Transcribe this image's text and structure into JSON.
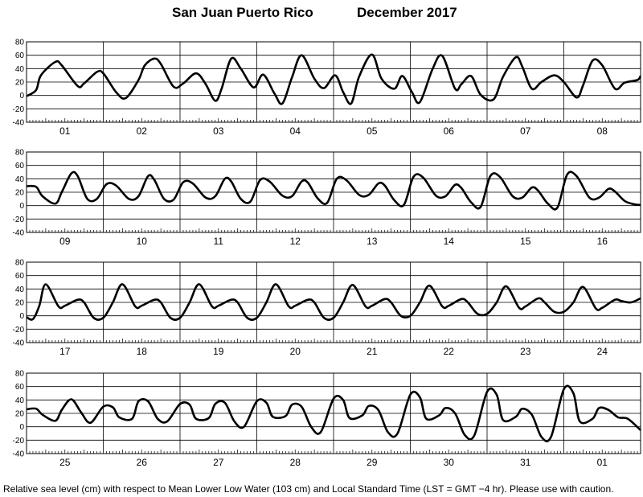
{
  "header": {
    "station": "San Juan Puerto Rico",
    "month_year": "December   2017"
  },
  "footnote": "Relative sea level (cm) with respect to Mean Lower Low Water (103 cm) and Local Standard Time (LST = GMT −4 hr). Please use with caution.",
  "chart_data": {
    "type": "line",
    "title": "San Juan Puerto Rico December 2017",
    "ylim": [
      -40,
      80
    ],
    "y_ticks": [
      -40,
      -20,
      0,
      20,
      40,
      60,
      80
    ],
    "grid": true,
    "panels": [
      {
        "day_labels": [
          "01",
          "02",
          "03",
          "04",
          "05",
          "06",
          "07",
          "08"
        ],
        "series": [
          {
            "x_hours": [
              0,
              3,
              4.5,
              9,
              11,
              16,
              18,
              22,
              24,
              28,
              31,
              35,
              37,
              40,
              42,
              46,
              49,
              53,
              56,
              59,
              61,
              64,
              67,
              71,
              74,
              77.5,
              80,
              83,
              86,
              90,
              93,
              96.5,
              99,
              101.5,
              104,
              108,
              111,
              115,
              117.5,
              120.5,
              123,
              127,
              130,
              134,
              136,
              139,
              142,
              146,
              149,
              153,
              155,
              158,
              161,
              165,
              168,
              172,
              174,
              177,
              180,
              184,
              187,
              191,
              192
            ],
            "sea_level_cm": [
              -1,
              8,
              30,
              50,
              45,
              14,
              18,
              35,
              33,
              5,
              -4,
              23,
              45,
              55,
              47,
              13,
              18,
              33,
              17,
              -8,
              10,
              55,
              40,
              12,
              31,
              3,
              -12,
              27,
              60,
              25,
              11,
              30,
              5,
              -12,
              28,
              61,
              25,
              10,
              29,
              5,
              -10,
              40,
              59,
              10,
              17,
              29,
              1,
              -6,
              28,
              57,
              43,
              10,
              20,
              30,
              20,
              -3,
              15,
              52,
              45,
              10,
              19,
              23,
              29
            ]
          }
        ]
      },
      {
        "day_labels": [
          "09",
          "10",
          "11",
          "12",
          "13",
          "14",
          "15",
          "16"
        ],
        "series": [
          {
            "x_hours": [
              0,
              3,
              5,
              9,
              11,
              14,
              16,
              19,
              22,
              25,
              28,
              32,
              35,
              38,
              40,
              43,
              46,
              49,
              52,
              56,
              59,
              62,
              64,
              67,
              70,
              73,
              76,
              80,
              83,
              86,
              88,
              91,
              94,
              97,
              100,
              104,
              107,
              110,
              112,
              115,
              118,
              121,
              124,
              128,
              131,
              134,
              136,
              139,
              142,
              145,
              148,
              152,
              155,
              158,
              160,
              163,
              166,
              169,
              172,
              176,
              179,
              182,
              184,
              187,
              190,
              192
            ],
            "sea_level_cm": [
              29,
              28,
              14,
              3,
              20,
              48,
              44,
              10,
              10,
              32,
              30,
              10,
              14,
              44,
              38,
              10,
              9,
              35,
              33,
              12,
              14,
              40,
              36,
              10,
              6,
              38,
              36,
              15,
              14,
              36,
              34,
              11,
              4,
              40,
              38,
              16,
              16,
              33,
              30,
              8,
              1,
              43,
              42,
              15,
              14,
              31,
              26,
              5,
              -2,
              44,
              43,
              14,
              12,
              27,
              22,
              3,
              -3,
              46,
              44,
              12,
              12,
              25,
              21,
              7,
              2,
              1
            ]
          }
        ]
      },
      {
        "day_labels": [
          "17",
          "18",
          "19",
          "20",
          "21",
          "22",
          "23",
          "24"
        ],
        "series": [
          {
            "x_hours": [
              0,
              2,
              4,
              6,
              10,
              12,
              16,
              18,
              21,
              24,
              27,
              30,
              34,
              36,
              40,
              42,
              45,
              48,
              51,
              54,
              58,
              60,
              64,
              66,
              69,
              72,
              75,
              78,
              82,
              84,
              88,
              90,
              93,
              96,
              99,
              102,
              106,
              108,
              112,
              114,
              117,
              120,
              123,
              126,
              130,
              132,
              136,
              138,
              141,
              144,
              147,
              150,
              154,
              156,
              160,
              162,
              165,
              168,
              171,
              174,
              178,
              180,
              184,
              186,
              189,
              192
            ],
            "sea_level_cm": [
              -2,
              -5,
              15,
              47,
              14,
              15,
              24,
              20,
              -3,
              -3,
              20,
              47,
              14,
              15,
              24,
              20,
              -3,
              -3,
              20,
              47,
              14,
              15,
              24,
              20,
              -3,
              -3,
              20,
              47,
              14,
              15,
              24,
              20,
              -3,
              -3,
              20,
              46,
              14,
              15,
              25,
              20,
              0,
              0,
              20,
              45,
              14,
              15,
              25,
              20,
              3,
              3,
              20,
              44,
              12,
              14,
              26,
              20,
              6,
              6,
              20,
              43,
              11,
              12,
              24,
              22,
              20,
              26
            ]
          }
        ]
      },
      {
        "day_labels": [
          "25",
          "26",
          "27",
          "28",
          "29",
          "30",
          "31",
          "01"
        ],
        "series": [
          {
            "x_hours": [
              0,
              3,
              5,
              9,
              11,
              14,
              17,
              20,
              24,
              27,
              29,
              33,
              35,
              38,
              41,
              44,
              48,
              51,
              53,
              57,
              59,
              62,
              65,
              68,
              72,
              75,
              77,
              81,
              83,
              86,
              89,
              92,
              96,
              99,
              101,
              105,
              107,
              110,
              113,
              116,
              120,
              123,
              125,
              129,
              131,
              134,
              137,
              140,
              144,
              147,
              149,
              153,
              155,
              158,
              161,
              164,
              168,
              171,
              173,
              177,
              179,
              182,
              185,
              188,
              192
            ],
            "sea_level_cm": [
              26,
              27,
              18,
              9,
              25,
              41,
              22,
              6,
              30,
              29,
              14,
              12,
              38,
              38,
              12,
              8,
              34,
              33,
              12,
              13,
              34,
              36,
              8,
              0,
              38,
              36,
              15,
              16,
              33,
              30,
              0,
              -8,
              42,
              40,
              13,
              17,
              31,
              25,
              -8,
              -10,
              48,
              44,
              12,
              17,
              28,
              20,
              -12,
              -13,
              52,
              48,
              10,
              15,
              27,
              18,
              -15,
              -15,
              56,
              50,
              8,
              12,
              28,
              25,
              14,
              12,
              -5
            ]
          }
        ]
      }
    ]
  }
}
